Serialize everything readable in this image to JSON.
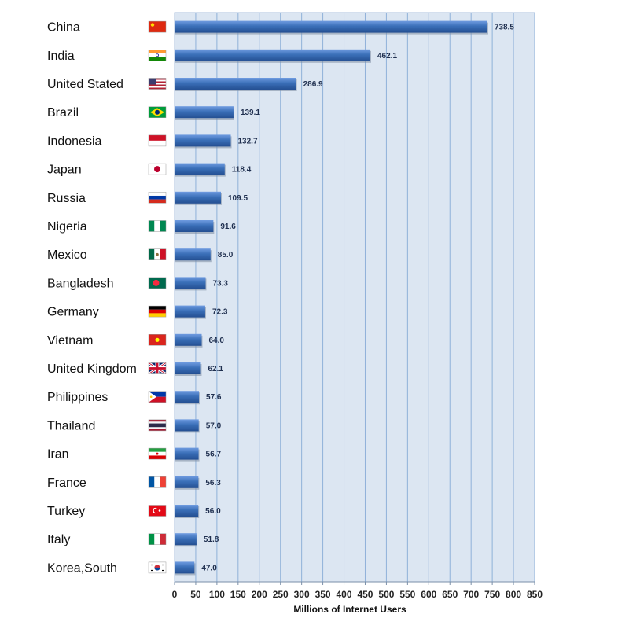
{
  "chart_data": {
    "type": "bar",
    "orientation": "horizontal",
    "title": "",
    "xlabel": "Millions of Internet Users",
    "ylabel": "",
    "xlim": [
      0,
      850
    ],
    "x_ticks": [
      0,
      50,
      100,
      150,
      200,
      250,
      300,
      350,
      400,
      450,
      500,
      550,
      600,
      650,
      700,
      750,
      800,
      850
    ],
    "grid": "vertical",
    "colors": {
      "bar": "#3a6fb8",
      "bar_light": "#6f9be0",
      "bar_dark": "#244f92",
      "plot_bg": "#dce6f2",
      "grid": "#8fb1d9",
      "value_label": "#1f2f4f"
    },
    "categories": [
      "China",
      "India",
      "United Stated",
      "Brazil",
      "Indonesia",
      "Japan",
      "Russia",
      "Nigeria",
      "Mexico",
      "Bangladesh",
      "Germany",
      "Vietnam",
      "United  Kingdom",
      "Philippines",
      "Thailand",
      "Iran",
      "France",
      "Turkey",
      "Italy",
      "Korea,South"
    ],
    "values": [
      738.5,
      462.1,
      286.9,
      139.1,
      132.7,
      118.4,
      109.5,
      91.6,
      85.0,
      73.3,
      72.3,
      64.0,
      62.1,
      57.6,
      57.0,
      56.7,
      56.3,
      56.0,
      51.8,
      47.0
    ],
    "value_labels": [
      "738.5",
      "462.1",
      "286.9",
      "139.1",
      "132.7",
      "118.4",
      "109.5",
      "91.6",
      "85.0",
      "73.3",
      "72.3",
      "64.0",
      "62.1",
      "57.6",
      "57.0",
      "56.7",
      "56.3",
      "56.0",
      "51.8",
      "47.0"
    ],
    "flags": [
      "china-flag-icon",
      "india-flag-icon",
      "usa-flag-icon",
      "brazil-flag-icon",
      "indonesia-flag-icon",
      "japan-flag-icon",
      "russia-flag-icon",
      "nigeria-flag-icon",
      "mexico-flag-icon",
      "bangladesh-flag-icon",
      "germany-flag-icon",
      "vietnam-flag-icon",
      "uk-flag-icon",
      "philippines-flag-icon",
      "thailand-flag-icon",
      "iran-flag-icon",
      "france-flag-icon",
      "turkey-flag-icon",
      "italy-flag-icon",
      "south-korea-flag-icon"
    ]
  }
}
